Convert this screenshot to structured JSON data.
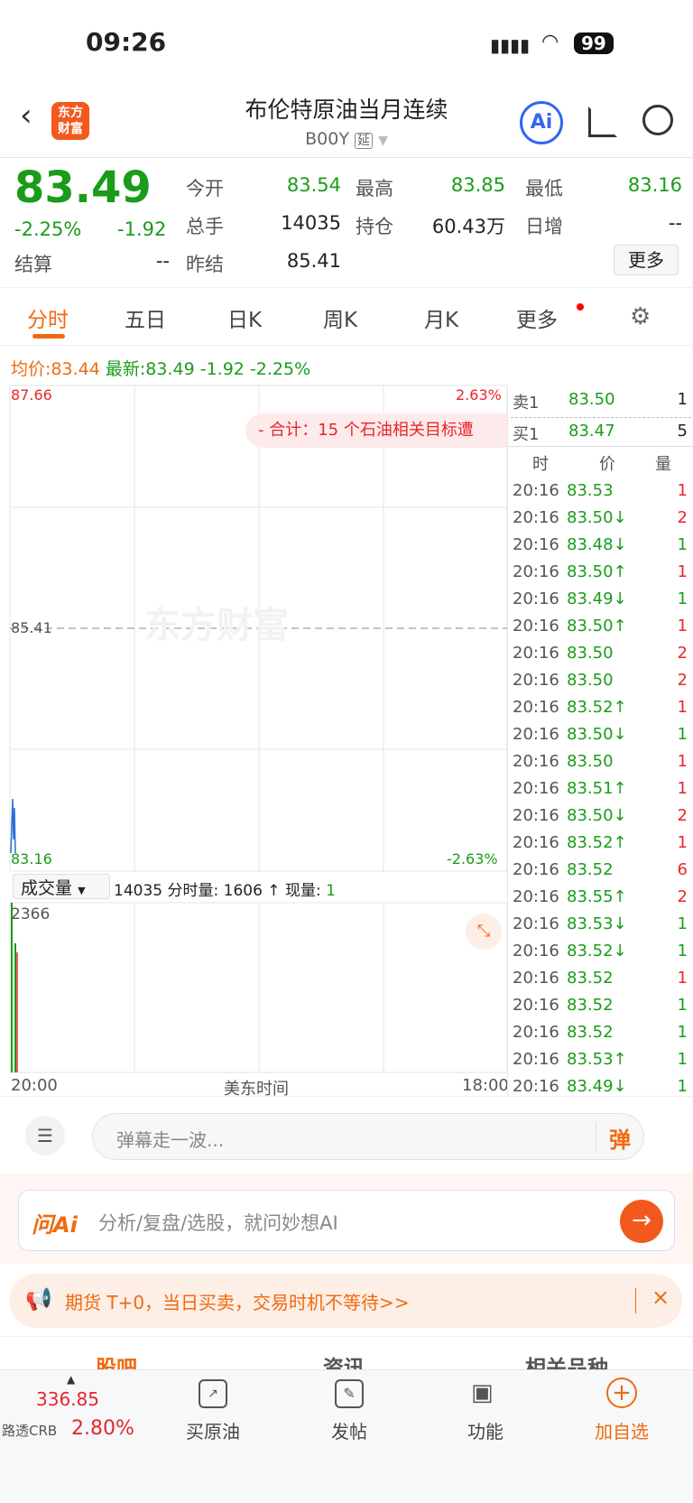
{
  "status": {
    "time": "09:26",
    "battery": "99"
  },
  "header": {
    "title": "布伦特原油当月连续",
    "code": "B00Y",
    "tag": "延",
    "logo": "东方财富",
    "ai": "Ai"
  },
  "quote": {
    "price": "83.49",
    "pct": "-2.25%",
    "chg": "-1.92",
    "fields": [
      {
        "label": "今开",
        "value": "83.54"
      },
      {
        "label": "最高",
        "value": "83.85"
      },
      {
        "label": "最低",
        "value": "83.16"
      },
      {
        "label": "总手",
        "value": "14035"
      },
      {
        "label": "持仓",
        "value": "60.43万"
      },
      {
        "label": "日增",
        "value": "--"
      },
      {
        "label": "结算",
        "value": "--"
      },
      {
        "label": "昨结",
        "value": "85.41"
      }
    ],
    "more": "更多"
  },
  "tabs": [
    "分时",
    "五日",
    "日K",
    "周K",
    "月K",
    "更多"
  ],
  "chart": {
    "avg_label": "均价:",
    "avg": "83.44",
    "last_label": "最新:",
    "last": "83.49",
    "chg": "-1.92",
    "pct": "-2.25%",
    "y_max": "87.66",
    "y_mid": "85.41",
    "y_min": "83.16",
    "pct_max": "2.63%",
    "pct_min": "-2.63%",
    "banner": "- 合计：15 个石油相关目标遭",
    "watermark": "东方财富",
    "vol_selector": "成交量",
    "vol_total": "14035",
    "vol_min_label": "分时量:",
    "vol_min": "1606 ↑",
    "vol_now_label": "现量:",
    "vol_now": "1",
    "vol_max": "2366",
    "x_start": "20:00",
    "x_mid": "美东时间",
    "x_end": "18:00"
  },
  "book": {
    "sell_label": "卖1",
    "sell_price": "83.50",
    "sell_vol": "1",
    "buy_label": "买1",
    "buy_price": "83.47",
    "buy_vol": "5",
    "h_time": "时",
    "h_price": "价",
    "h_vol": "量"
  },
  "ticks": [
    {
      "t": "20:16",
      "p": "83.53",
      "v": "1",
      "c": "r"
    },
    {
      "t": "20:16",
      "p": "83.50↓",
      "v": "2",
      "c": "r"
    },
    {
      "t": "20:16",
      "p": "83.48↓",
      "v": "1",
      "c": "g"
    },
    {
      "t": "20:16",
      "p": "83.50↑",
      "v": "1",
      "c": "r"
    },
    {
      "t": "20:16",
      "p": "83.49↓",
      "v": "1",
      "c": "g"
    },
    {
      "t": "20:16",
      "p": "83.50↑",
      "v": "1",
      "c": "r"
    },
    {
      "t": "20:16",
      "p": "83.50",
      "v": "2",
      "c": "r"
    },
    {
      "t": "20:16",
      "p": "83.50",
      "v": "2",
      "c": "r"
    },
    {
      "t": "20:16",
      "p": "83.52↑",
      "v": "1",
      "c": "r"
    },
    {
      "t": "20:16",
      "p": "83.50↓",
      "v": "1",
      "c": "g"
    },
    {
      "t": "20:16",
      "p": "83.50",
      "v": "1",
      "c": "r"
    },
    {
      "t": "20:16",
      "p": "83.51↑",
      "v": "1",
      "c": "r"
    },
    {
      "t": "20:16",
      "p": "83.50↓",
      "v": "2",
      "c": "r"
    },
    {
      "t": "20:16",
      "p": "83.52↑",
      "v": "1",
      "c": "r"
    },
    {
      "t": "20:16",
      "p": "83.52",
      "v": "6",
      "c": "r"
    },
    {
      "t": "20:16",
      "p": "83.55↑",
      "v": "2",
      "c": "r"
    },
    {
      "t": "20:16",
      "p": "83.53↓",
      "v": "1",
      "c": "g"
    },
    {
      "t": "20:16",
      "p": "83.52↓",
      "v": "1",
      "c": "g"
    },
    {
      "t": "20:16",
      "p": "83.52",
      "v": "1",
      "c": "r"
    },
    {
      "t": "20:16",
      "p": "83.52",
      "v": "1",
      "c": "g"
    },
    {
      "t": "20:16",
      "p": "83.52",
      "v": "1",
      "c": "g"
    },
    {
      "t": "20:16",
      "p": "83.53↑",
      "v": "1",
      "c": "g"
    },
    {
      "t": "20:16",
      "p": "83.49↓",
      "v": "1",
      "c": "g"
    }
  ],
  "comment": {
    "placeholder": "弹幕走一波...",
    "danmu": "弹"
  },
  "ai_box": {
    "logo": "问Ai",
    "placeholder": "分析/复盘/选股，就问妙想AI"
  },
  "promo": {
    "text": "期货 T+0，当日买卖，交易时机不等待>>"
  },
  "section_tabs": [
    "股吧",
    "资讯",
    "相关品种"
  ],
  "bottom": {
    "index_value": "336.85",
    "index_name": "路透CRB",
    "index_pct": "2.80%",
    "items": [
      "买原油",
      "发帖",
      "功能",
      "加自选"
    ]
  },
  "colors": {
    "up": "#e8262b",
    "down": "#1a9c1a",
    "accent": "#f06a0f"
  }
}
